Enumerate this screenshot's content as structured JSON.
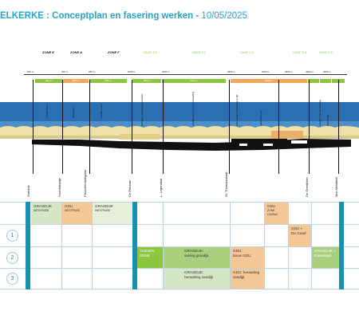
{
  "title": {
    "main": "ELKERKE : Conceptplan en fasering werken",
    "sep": " - ",
    "date": "10/05/2025"
  },
  "zones": [
    "ZONE E",
    "ZONE A",
    "ZONE F"
  ],
  "fases": [
    "FASE 3.2",
    "FASE 2.2",
    "FASE 2.4",
    "FASE 1.4",
    "FASE 1.8"
  ],
  "km_marks": [
    "-200 m",
    "200 m",
    "650 m",
    "1000 m",
    "2000 m",
    "2400 m",
    "3000 m",
    "3400 m",
    "4000 m",
    "4400 m"
  ],
  "segment_bars": [
    {
      "label": "400 m",
      "color": "#8cc63f"
    },
    {
      "label": "380 m",
      "color": "#f2a65a"
    },
    {
      "label": "800 m",
      "color": "#8cc63f"
    },
    {
      "label": "400 m",
      "color": "#8cc63f"
    },
    {
      "label": "1100 m",
      "color": "#8cc63f"
    },
    {
      "label": "1600 m",
      "color": "#f2a65a"
    },
    {
      "label": "",
      "color": "#8cc63f"
    },
    {
      "label": "",
      "color": "#8cc63f"
    },
    {
      "label": "",
      "color": "#8cc63f"
    }
  ],
  "annotations": [
    "Grasdijk Zone E",
    "GDU zone A",
    "Grasdijk zone F",
    "Weergave toelevering kunstwerken",
    "Grasdijk Zone en fase 2.2 herwerking",
    "GDU aanleg en herwerking tot dijk",
    "Herinrichting dijk",
    "Grasdijk zone met afwerking",
    "GDU en dijk"
  ],
  "streets": [
    "Surfclub",
    "Noordstraatje",
    "Passchendalegaan",
    "De Rotonde",
    "L. Logendaal",
    "St. Theresiastraat",
    "De Greefplein",
    "Mon Mobiliteit"
  ],
  "grid": {
    "row_numbers": [
      "1",
      "2",
      "3"
    ],
    "row0": [
      {
        "title": "GRASDIJK",
        "sub": "WESTENDE",
        "color": "#d4e6c3"
      },
      {
        "title": "GDU",
        "sub": "WESTENDE",
        "color": "#f5c696"
      },
      {
        "title": "GRASDIJK",
        "sub": "WESTENDE",
        "color": "#e6efd9"
      },
      {
        "title": "GDU",
        "sub": "ZONE CASINO",
        "color": "#f5c696"
      }
    ],
    "row1": [
      {
        "title": "GDU +\nDe Greef",
        "color": "#f5c696"
      }
    ],
    "row2": [
      {
        "title": "TUSSEN\nZONE",
        "color": "#8cc63f",
        "text_color": "#ffffff"
      },
      {
        "title": "GRASDIJK:\nsanleg grasdijk",
        "color": "#a9d07d"
      },
      {
        "title": "GDU:\nbouw GDU",
        "color": "#f5c696"
      },
      {
        "title": "GRASDIJK +\nCasselaan",
        "color": "#a9d07d",
        "text_color": "#ffffff"
      }
    ],
    "row3": [
      {
        "title": "GRASDIJK:\nheraanleg zeedijk",
        "color": "#d4e6c3"
      },
      {
        "title": "GDU: heraanleg\nzeedijk",
        "color": "#f5c696"
      }
    ]
  },
  "colors": {
    "accent": "#2aa3c9",
    "green": "#8cc63f",
    "orange": "#f2a65a",
    "teal": "#1b8fb0",
    "sea": "#2b6fb3",
    "sand": "#efe0a8"
  }
}
